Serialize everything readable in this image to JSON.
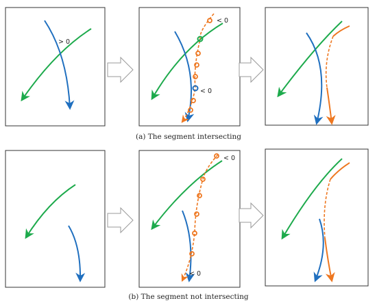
{
  "captions": {
    "a": "(a) The segment intersecting",
    "b": "(b) The segment not intersecting"
  },
  "annotations": {
    "gt0": "> 0",
    "lt0": "< 0"
  },
  "colors": {
    "green": "#1daa4c",
    "blue": "#1f6fbf",
    "orange": "#ee7720",
    "border": "#333333",
    "transition_arrow": "#9a9a9a"
  }
}
